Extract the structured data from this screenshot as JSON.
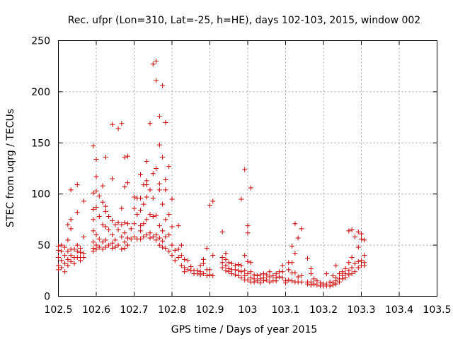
{
  "chart_data": {
    "type": "scatter",
    "title": "Rec. ufpr (Lon=310, Lat=-25, h=HE), days 102-103, 2015, window 002",
    "xlabel": "GPS time / Days of year 2015",
    "ylabel": "STEC from uqrg / TECUs",
    "xlim": [
      102.5,
      103.5
    ],
    "ylim": [
      0,
      250
    ],
    "xticks": [
      "102.5",
      "102.6",
      "102.7",
      "102.8",
      "102.9",
      "103",
      "103.1",
      "103.2",
      "103.3",
      "103.4",
      "103.5"
    ],
    "yticks": [
      "0",
      "50",
      "100",
      "150",
      "200",
      "250"
    ],
    "grid": true,
    "marker": "plus",
    "color": "#cc0000",
    "points": [
      [
        102.5,
        49
      ],
      [
        102.5,
        45
      ],
      [
        102.5,
        38
      ],
      [
        102.5,
        30
      ],
      [
        102.5,
        26
      ],
      [
        102.508,
        50
      ],
      [
        102.508,
        44
      ],
      [
        102.508,
        35
      ],
      [
        102.508,
        28
      ],
      [
        102.517,
        48
      ],
      [
        102.517,
        40
      ],
      [
        102.517,
        32
      ],
      [
        102.517,
        24
      ],
      [
        102.525,
        70
      ],
      [
        102.525,
        55
      ],
      [
        102.525,
        44
      ],
      [
        102.525,
        36
      ],
      [
        102.525,
        30
      ],
      [
        102.533,
        104
      ],
      [
        102.533,
        75
      ],
      [
        102.533,
        66
      ],
      [
        102.533,
        46
      ],
      [
        102.533,
        40
      ],
      [
        102.533,
        34
      ],
      [
        102.542,
        46
      ],
      [
        102.542,
        38
      ],
      [
        102.542,
        32
      ],
      [
        102.55,
        109
      ],
      [
        102.55,
        82
      ],
      [
        102.55,
        50
      ],
      [
        102.55,
        44
      ],
      [
        102.55,
        38
      ],
      [
        102.558,
        47
      ],
      [
        102.558,
        43
      ],
      [
        102.558,
        38
      ],
      [
        102.558,
        35
      ],
      [
        102.567,
        93
      ],
      [
        102.567,
        58
      ],
      [
        102.567,
        42
      ],
      [
        102.567,
        38
      ],
      [
        102.592,
        147
      ],
      [
        102.592,
        101
      ],
      [
        102.592,
        85
      ],
      [
        102.592,
        75
      ],
      [
        102.592,
        64
      ],
      [
        102.592,
        53
      ],
      [
        102.592,
        47
      ],
      [
        102.592,
        44
      ],
      [
        102.6,
        134
      ],
      [
        102.6,
        117
      ],
      [
        102.6,
        103
      ],
      [
        102.6,
        87
      ],
      [
        102.6,
        60
      ],
      [
        102.6,
        50
      ],
      [
        102.6,
        46
      ],
      [
        102.608,
        98
      ],
      [
        102.608,
        78
      ],
      [
        102.608,
        56
      ],
      [
        102.608,
        48
      ],
      [
        102.617,
        108
      ],
      [
        102.617,
        92
      ],
      [
        102.617,
        70
      ],
      [
        102.617,
        53
      ],
      [
        102.617,
        46
      ],
      [
        102.625,
        136
      ],
      [
        102.625,
        88
      ],
      [
        102.625,
        83
      ],
      [
        102.625,
        68
      ],
      [
        102.625,
        55
      ],
      [
        102.625,
        48
      ],
      [
        102.633,
        78
      ],
      [
        102.633,
        65
      ],
      [
        102.633,
        50
      ],
      [
        102.642,
        168
      ],
      [
        102.642,
        115
      ],
      [
        102.642,
        74
      ],
      [
        102.642,
        60
      ],
      [
        102.642,
        52
      ],
      [
        102.642,
        47
      ],
      [
        102.65,
        70
      ],
      [
        102.65,
        55
      ],
      [
        102.65,
        48
      ],
      [
        102.658,
        164
      ],
      [
        102.658,
        72
      ],
      [
        102.658,
        65
      ],
      [
        102.658,
        50
      ],
      [
        102.667,
        169
      ],
      [
        102.667,
        86
      ],
      [
        102.667,
        70
      ],
      [
        102.667,
        58
      ],
      [
        102.667,
        46
      ],
      [
        102.675,
        136
      ],
      [
        102.675,
        107
      ],
      [
        102.675,
        72
      ],
      [
        102.675,
        62
      ],
      [
        102.675,
        53
      ],
      [
        102.675,
        47
      ],
      [
        102.683,
        137
      ],
      [
        102.683,
        111
      ],
      [
        102.683,
        71
      ],
      [
        102.683,
        57
      ],
      [
        102.683,
        50
      ],
      [
        102.692,
        66
      ],
      [
        102.692,
        56
      ],
      [
        102.7,
        97
      ],
      [
        102.7,
        86
      ],
      [
        102.7,
        71
      ],
      [
        102.7,
        58
      ],
      [
        102.708,
        96
      ],
      [
        102.708,
        80
      ],
      [
        102.708,
        56
      ],
      [
        102.717,
        119
      ],
      [
        102.717,
        96
      ],
      [
        102.717,
        84
      ],
      [
        102.717,
        69
      ],
      [
        102.717,
        64
      ],
      [
        102.717,
        56
      ],
      [
        102.725,
        109
      ],
      [
        102.725,
        90
      ],
      [
        102.725,
        71
      ],
      [
        102.725,
        58
      ],
      [
        102.733,
        132
      ],
      [
        102.733,
        113
      ],
      [
        102.733,
        109
      ],
      [
        102.733,
        97
      ],
      [
        102.733,
        75
      ],
      [
        102.733,
        60
      ],
      [
        102.742,
        169
      ],
      [
        102.742,
        104
      ],
      [
        102.742,
        80
      ],
      [
        102.742,
        62
      ],
      [
        102.742,
        57
      ],
      [
        102.75,
        227
      ],
      [
        102.75,
        120
      ],
      [
        102.75,
        96
      ],
      [
        102.75,
        78
      ],
      [
        102.75,
        58
      ],
      [
        102.758,
        230
      ],
      [
        102.758,
        211
      ],
      [
        102.758,
        125
      ],
      [
        102.758,
        79
      ],
      [
        102.758,
        60
      ],
      [
        102.758,
        55
      ],
      [
        102.767,
        176
      ],
      [
        102.767,
        148
      ],
      [
        102.767,
        110
      ],
      [
        102.767,
        104
      ],
      [
        102.767,
        69
      ],
      [
        102.767,
        57
      ],
      [
        102.767,
        50
      ],
      [
        102.775,
        206
      ],
      [
        102.775,
        136
      ],
      [
        102.775,
        90
      ],
      [
        102.775,
        64
      ],
      [
        102.775,
        54
      ],
      [
        102.775,
        48
      ],
      [
        102.783,
        170
      ],
      [
        102.783,
        114
      ],
      [
        102.783,
        104
      ],
      [
        102.783,
        75
      ],
      [
        102.783,
        58
      ],
      [
        102.783,
        47
      ],
      [
        102.792,
        127
      ],
      [
        102.792,
        80
      ],
      [
        102.792,
        60
      ],
      [
        102.792,
        44
      ],
      [
        102.8,
        95
      ],
      [
        102.8,
        68
      ],
      [
        102.8,
        50
      ],
      [
        102.8,
        40
      ],
      [
        102.808,
        45
      ],
      [
        102.808,
        35
      ],
      [
        102.817,
        69
      ],
      [
        102.817,
        46
      ],
      [
        102.817,
        38
      ],
      [
        102.825,
        50
      ],
      [
        102.825,
        40
      ],
      [
        102.825,
        30
      ],
      [
        102.833,
        36
      ],
      [
        102.833,
        28
      ],
      [
        102.833,
        24
      ],
      [
        102.842,
        35
      ],
      [
        102.842,
        26
      ],
      [
        102.85,
        29
      ],
      [
        102.85,
        25
      ],
      [
        102.858,
        25
      ],
      [
        102.858,
        22
      ],
      [
        102.867,
        25
      ],
      [
        102.867,
        22
      ],
      [
        102.875,
        30
      ],
      [
        102.875,
        24
      ],
      [
        102.875,
        21
      ],
      [
        102.883,
        36
      ],
      [
        102.883,
        32
      ],
      [
        102.883,
        22
      ],
      [
        102.892,
        47
      ],
      [
        102.892,
        26
      ],
      [
        102.892,
        20
      ],
      [
        102.9,
        89
      ],
      [
        102.9,
        26
      ],
      [
        102.9,
        21
      ],
      [
        102.908,
        93
      ],
      [
        102.908,
        40
      ],
      [
        102.908,
        20
      ],
      [
        102.933,
        63
      ],
      [
        102.933,
        38
      ],
      [
        102.933,
        33
      ],
      [
        102.933,
        28
      ],
      [
        102.942,
        42
      ],
      [
        102.942,
        36
      ],
      [
        102.942,
        30
      ],
      [
        102.942,
        25
      ],
      [
        102.95,
        33
      ],
      [
        102.95,
        27
      ],
      [
        102.95,
        24
      ],
      [
        102.958,
        32
      ],
      [
        102.958,
        26
      ],
      [
        102.958,
        22
      ],
      [
        102.967,
        30
      ],
      [
        102.967,
        26
      ],
      [
        102.967,
        21
      ],
      [
        102.975,
        31
      ],
      [
        102.975,
        25
      ],
      [
        102.975,
        20
      ],
      [
        102.983,
        95
      ],
      [
        102.983,
        30
      ],
      [
        102.983,
        24
      ],
      [
        102.983,
        18
      ],
      [
        102.992,
        124
      ],
      [
        102.992,
        40
      ],
      [
        102.992,
        25
      ],
      [
        102.992,
        20
      ],
      [
        102.992,
        16
      ],
      [
        103.0,
        69
      ],
      [
        103.0,
        62
      ],
      [
        103.0,
        34
      ],
      [
        103.0,
        22
      ],
      [
        103.0,
        16
      ],
      [
        103.008,
        106
      ],
      [
        103.008,
        33
      ],
      [
        103.008,
        24
      ],
      [
        103.008,
        18
      ],
      [
        103.008,
        14
      ],
      [
        103.017,
        21
      ],
      [
        103.017,
        17
      ],
      [
        103.017,
        14
      ],
      [
        103.025,
        20
      ],
      [
        103.025,
        15
      ],
      [
        103.033,
        21
      ],
      [
        103.033,
        17
      ],
      [
        103.033,
        13
      ],
      [
        103.042,
        22
      ],
      [
        103.042,
        18
      ],
      [
        103.042,
        15
      ],
      [
        103.05,
        21
      ],
      [
        103.05,
        16
      ],
      [
        103.058,
        24
      ],
      [
        103.058,
        19
      ],
      [
        103.058,
        14
      ],
      [
        103.067,
        20
      ],
      [
        103.067,
        15
      ],
      [
        103.075,
        22
      ],
      [
        103.075,
        18
      ],
      [
        103.075,
        15
      ],
      [
        103.083,
        24
      ],
      [
        103.083,
        19
      ],
      [
        103.092,
        30
      ],
      [
        103.092,
        24
      ],
      [
        103.092,
        18
      ],
      [
        103.1,
        15
      ],
      [
        103.1,
        13
      ],
      [
        103.108,
        33
      ],
      [
        103.108,
        26
      ],
      [
        103.108,
        16
      ],
      [
        103.117,
        49
      ],
      [
        103.117,
        33
      ],
      [
        103.117,
        23
      ],
      [
        103.117,
        15
      ],
      [
        103.125,
        71
      ],
      [
        103.125,
        42
      ],
      [
        103.125,
        23
      ],
      [
        103.125,
        14
      ],
      [
        103.133,
        57
      ],
      [
        103.133,
        19
      ],
      [
        103.133,
        14
      ],
      [
        103.142,
        66
      ],
      [
        103.142,
        20
      ],
      [
        103.142,
        14
      ],
      [
        103.158,
        37
      ],
      [
        103.158,
        14
      ],
      [
        103.158,
        12
      ],
      [
        103.167,
        27
      ],
      [
        103.167,
        22
      ],
      [
        103.167,
        14
      ],
      [
        103.167,
        11
      ],
      [
        103.175,
        17
      ],
      [
        103.175,
        12
      ],
      [
        103.183,
        15
      ],
      [
        103.183,
        11
      ],
      [
        103.192,
        13
      ],
      [
        103.192,
        10
      ],
      [
        103.2,
        12
      ],
      [
        103.2,
        10
      ],
      [
        103.208,
        22
      ],
      [
        103.208,
        12
      ],
      [
        103.208,
        10
      ],
      [
        103.217,
        14
      ],
      [
        103.217,
        10
      ],
      [
        103.225,
        20
      ],
      [
        103.225,
        13
      ],
      [
        103.225,
        11
      ],
      [
        103.233,
        30
      ],
      [
        103.233,
        18
      ],
      [
        103.233,
        15
      ],
      [
        103.233,
        12
      ],
      [
        103.242,
        22
      ],
      [
        103.242,
        17
      ],
      [
        103.242,
        14
      ],
      [
        103.25,
        24
      ],
      [
        103.25,
        20
      ],
      [
        103.25,
        17
      ],
      [
        103.258,
        27
      ],
      [
        103.258,
        22
      ],
      [
        103.258,
        18
      ],
      [
        103.267,
        64
      ],
      [
        103.267,
        33
      ],
      [
        103.267,
        25
      ],
      [
        103.267,
        21
      ],
      [
        103.275,
        65
      ],
      [
        103.275,
        38
      ],
      [
        103.275,
        28
      ],
      [
        103.275,
        22
      ],
      [
        103.283,
        58
      ],
      [
        103.283,
        32
      ],
      [
        103.283,
        24
      ],
      [
        103.292,
        63
      ],
      [
        103.292,
        48
      ],
      [
        103.292,
        34
      ],
      [
        103.292,
        28
      ],
      [
        103.3,
        61
      ],
      [
        103.3,
        56
      ],
      [
        103.3,
        35
      ],
      [
        103.3,
        30
      ],
      [
        103.308,
        55
      ],
      [
        103.308,
        40
      ],
      [
        103.308,
        33
      ],
      [
        103.308,
        30
      ]
    ]
  }
}
